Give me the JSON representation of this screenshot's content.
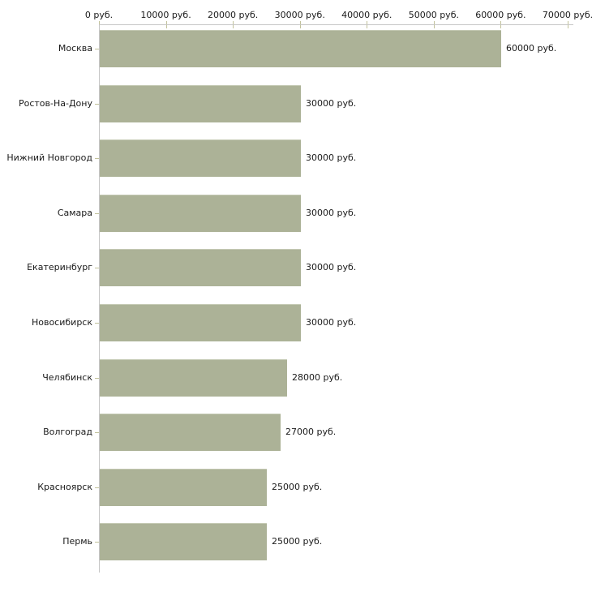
{
  "chart_data": {
    "type": "bar",
    "orientation": "horizontal",
    "title": "",
    "xlabel": "",
    "ylabel": "",
    "x_axis_position": "top",
    "grid": false,
    "legend": "none",
    "xlim": [
      0,
      70000
    ],
    "x_ticks": [
      0,
      10000,
      20000,
      30000,
      40000,
      50000,
      60000,
      70000
    ],
    "x_tick_labels": [
      "0 руб.",
      "10000 руб.",
      "20000 руб.",
      "30000 руб.",
      "40000 руб.",
      "50000 руб.",
      "60000 руб.",
      "70000 руб."
    ],
    "categories": [
      "Москва",
      "Ростов-На-Дону",
      "Нижний Новгород",
      "Самара",
      "Екатеринбург",
      "Новосибирск",
      "Челябинск",
      "Волгоград",
      "Красноярск",
      "Пермь"
    ],
    "values": [
      60000,
      30000,
      30000,
      30000,
      30000,
      30000,
      28000,
      27000,
      25000,
      25000
    ],
    "value_labels": [
      "60000 руб.",
      "30000 руб.",
      "30000 руб.",
      "30000 руб.",
      "30000 руб.",
      "30000 руб.",
      "28000 руб.",
      "27000 руб.",
      "25000 руб.",
      "25000 руб."
    ],
    "bar_color": "#acb297",
    "bar_edge_color": "#c3c8b2",
    "axis_line_color": "#c6c6c6",
    "tick_color": "#c2c29b",
    "text_color": "#1a1a1a",
    "background_color": "#ffffff"
  }
}
